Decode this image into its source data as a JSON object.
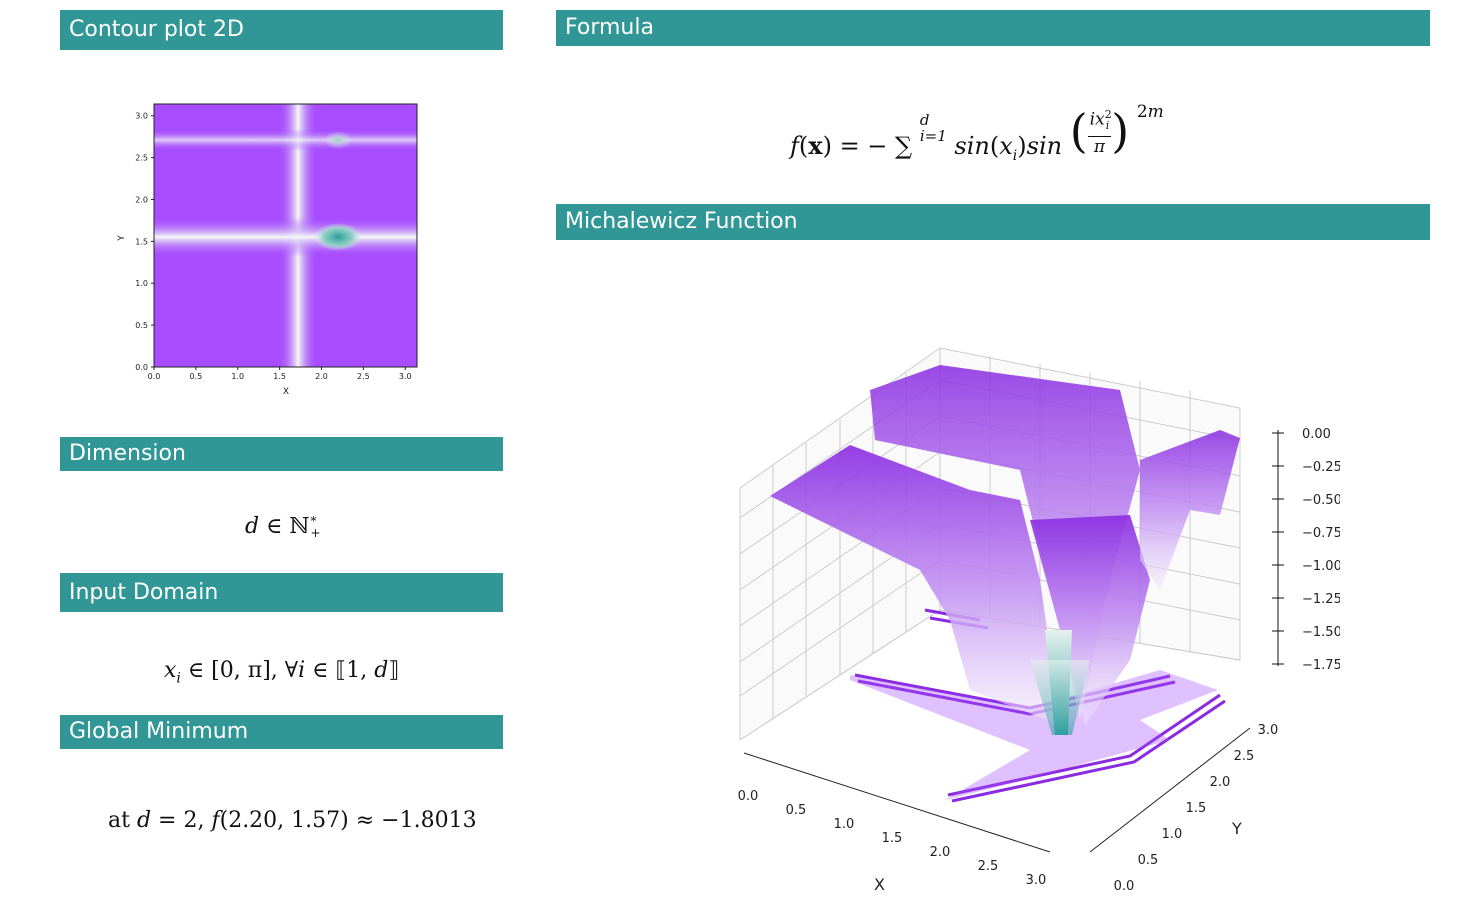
{
  "sections": {
    "contour": {
      "title": "Contour plot 2D"
    },
    "formula": {
      "title": "Formula"
    },
    "function": {
      "title": "Michalewicz Function"
    },
    "dimension": {
      "title": "Dimension"
    },
    "domain": {
      "title": "Input Domain"
    },
    "minimum": {
      "title": "Global Minimum"
    }
  },
  "formula": {
    "lhs": "f(x) = −",
    "sum_upper": "d",
    "sum_lower": "i=1",
    "body": "sin(x",
    "body_sub": "i",
    "body2": ")sin",
    "frac_num": "ix",
    "frac_num_sub": "i",
    "frac_num_sup": "2",
    "frac_den": "π",
    "exponent": "2m"
  },
  "dimension": {
    "var": "d",
    "rel": "∈",
    "set": "ℕ",
    "set_sup": "*",
    "set_sub": "+"
  },
  "domain": {
    "var": "x",
    "sub": "i",
    "text": " ∈ [0, π], ∀",
    "idx": "i",
    "text2": " ∈ ⟦1, ",
    "end_var": "d",
    "end": "⟧"
  },
  "minimum": {
    "prefix": "at ",
    "var": "d",
    "eq": " = 2, ",
    "fn": "f",
    "args": "(2.20, 1.57) ≈ −1.8013"
  },
  "chart_data": [
    {
      "type": "contour",
      "xlabel": "X",
      "ylabel": "Y",
      "xlim": [
        0,
        3.14
      ],
      "ylim": [
        0,
        3.14
      ],
      "xticks": [
        "0.0",
        "0.5",
        "1.0",
        "1.5",
        "2.0",
        "2.5",
        "3.0"
      ],
      "yticks": [
        "0.0",
        "0.5",
        "1.0",
        "1.5",
        "2.0",
        "2.5",
        "3.0"
      ],
      "minimum": {
        "x": 2.2,
        "y": 1.57
      },
      "colors": {
        "high": "#a74cff",
        "low": "#2e9e9e",
        "mid": "#ffffff"
      }
    },
    {
      "type": "surface3d",
      "xlabel": "X",
      "ylabel": "Y",
      "xticks": [
        "0.0",
        "0.5",
        "1.0",
        "1.5",
        "2.0",
        "2.5",
        "3.0"
      ],
      "yticks": [
        "0.0",
        "0.5",
        "1.0",
        "1.5",
        "2.0",
        "2.5",
        "3.0"
      ],
      "zticks": [
        "0.00",
        "−0.25",
        "−0.50",
        "−0.75",
        "−1.00",
        "−1.25",
        "−1.50",
        "−1.75"
      ],
      "colors": {
        "surface": "#8a2be2",
        "low": "#2e9e9e"
      }
    }
  ]
}
